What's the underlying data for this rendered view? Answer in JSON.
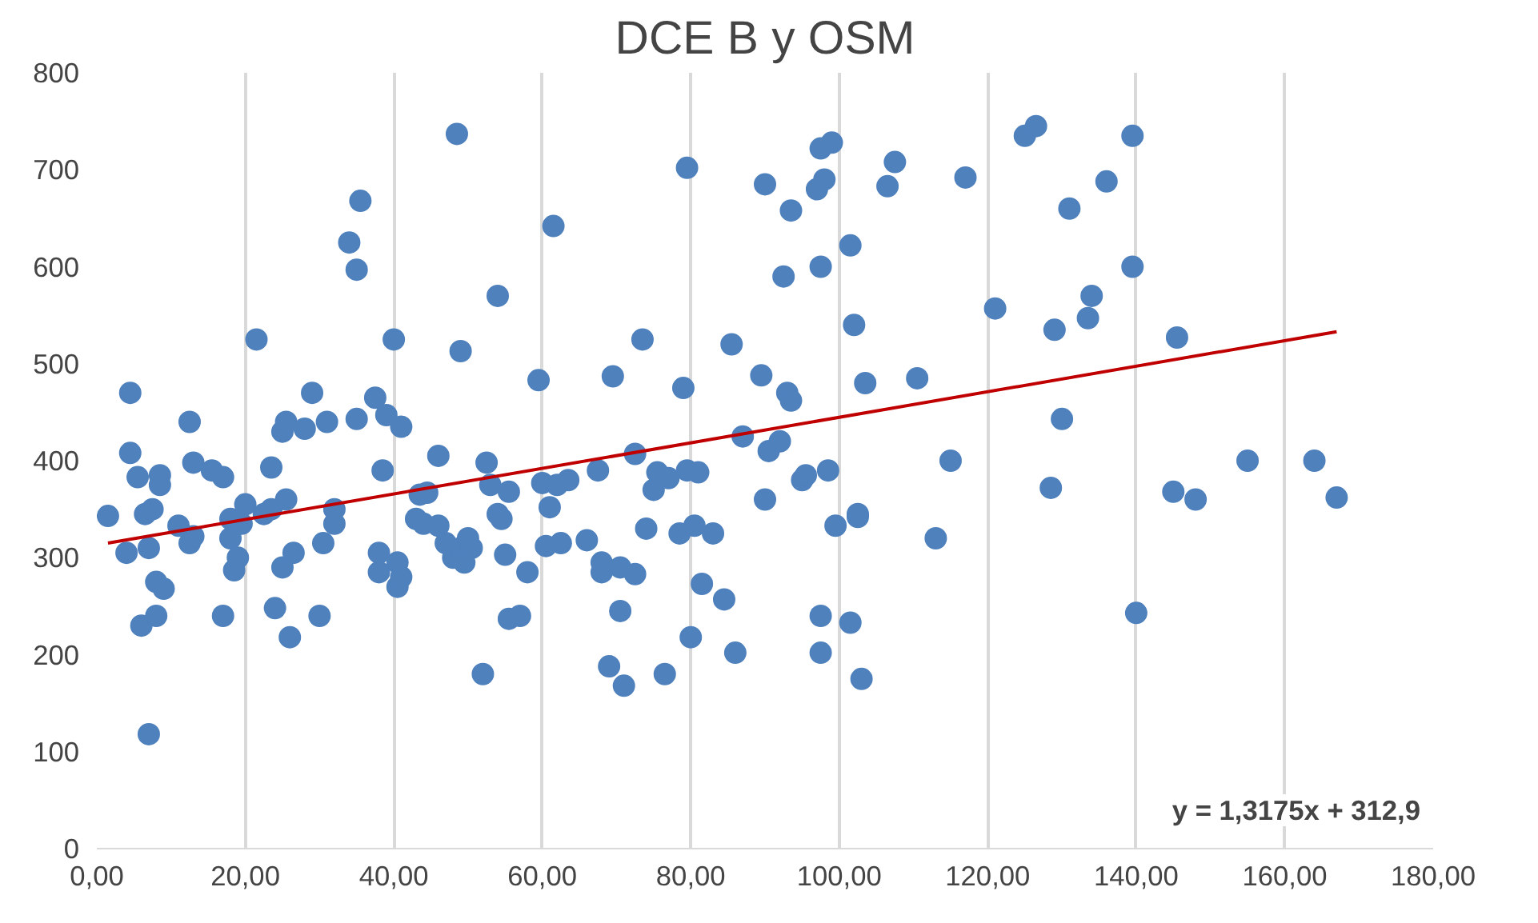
{
  "chart_data": {
    "type": "scatter",
    "title": "DCE B y OSM",
    "grid": "x",
    "xlim": [
      0,
      180
    ],
    "ylim": [
      0,
      800
    ],
    "xticks": [
      {
        "value": 0,
        "label": "0,00"
      },
      {
        "value": 20,
        "label": "20,00"
      },
      {
        "value": 40,
        "label": "40,00"
      },
      {
        "value": 60,
        "label": "60,00"
      },
      {
        "value": 80,
        "label": "80,00"
      },
      {
        "value": 100,
        "label": "100,00"
      },
      {
        "value": 120,
        "label": "120,00"
      },
      {
        "value": 140,
        "label": "140,00"
      },
      {
        "value": 160,
        "label": "160,00"
      },
      {
        "value": 180,
        "label": "180,00"
      }
    ],
    "yticks": [
      0,
      100,
      200,
      300,
      400,
      500,
      600,
      700,
      800
    ],
    "annotations": [
      "y = 1,3175x + 312,9"
    ],
    "series": [
      {
        "color": "#4f81bd",
        "marker": "circle",
        "x": [
          1.5,
          4,
          4.5,
          4.5,
          5.5,
          6,
          6.5,
          7,
          7,
          7.5,
          8,
          8,
          8.5,
          8.5,
          9,
          11,
          12.5,
          12.5,
          13,
          13,
          15.5,
          17,
          17,
          18,
          18,
          18.5,
          19,
          19.5,
          20,
          21.5,
          22.5,
          23.5,
          23.5,
          24,
          25,
          25,
          25.5,
          25.5,
          26,
          26.5,
          28,
          29,
          30,
          30.5,
          31,
          32,
          32,
          34,
          35,
          35.5,
          35,
          37.5,
          38,
          38,
          38.5,
          39,
          40,
          40.5,
          40.5,
          41,
          41,
          43,
          43.5,
          44,
          44.5,
          46,
          46,
          47,
          48,
          48.5,
          49,
          49,
          49.5,
          50,
          50.5,
          52,
          52.5,
          53,
          54,
          54,
          54.5,
          55,
          55.5,
          55.5,
          57,
          58,
          59.5,
          60,
          60.5,
          61,
          61.5,
          62,
          62.5,
          63.5,
          66,
          67.5,
          68,
          68,
          69,
          69.5,
          70.5,
          70.5,
          71,
          72.5,
          72.5,
          73.5,
          74,
          75,
          75.5,
          76.5,
          77,
          78.5,
          79,
          79.5,
          79.5,
          80,
          80.5,
          81,
          81.5,
          83,
          84.5,
          85.5,
          86,
          87,
          89.5,
          90,
          90,
          90.5,
          92,
          92.5,
          93,
          93.5,
          93.5,
          95,
          95.5,
          97,
          97.5,
          97.5,
          97.5,
          97.5,
          98,
          98.5,
          99,
          99.5,
          101.5,
          101.5,
          102,
          102.5,
          102.5,
          103,
          103.5,
          106.5,
          107.5,
          110.5,
          113,
          115,
          117,
          121,
          125,
          126.5,
          128.5,
          129,
          130,
          131,
          133.5,
          134,
          136,
          139.5,
          139.5,
          140,
          145,
          145.5,
          148,
          155,
          164,
          167
        ],
        "values": [
          343,
          305,
          470,
          408,
          383,
          230,
          345,
          118,
          310,
          350,
          240,
          275,
          385,
          375,
          268,
          333,
          440,
          315,
          398,
          322,
          390,
          240,
          383,
          340,
          320,
          287,
          300,
          335,
          355,
          525,
          345,
          350,
          393,
          248,
          430,
          290,
          360,
          440,
          218,
          305,
          433,
          470,
          240,
          315,
          440,
          335,
          350,
          625,
          597,
          668,
          443,
          465,
          305,
          285,
          390,
          447,
          525,
          270,
          295,
          280,
          435,
          340,
          365,
          335,
          367,
          405,
          333,
          315,
          300,
          737,
          513,
          310,
          295,
          320,
          310,
          180,
          398,
          375,
          570,
          345,
          340,
          303,
          368,
          237,
          240,
          285,
          483,
          377,
          312,
          352,
          642,
          375,
          315,
          380,
          318,
          390,
          285,
          295,
          188,
          487,
          290,
          245,
          168,
          407,
          283,
          525,
          330,
          370,
          388,
          180,
          382,
          325,
          475,
          390,
          702,
          218,
          333,
          388,
          273,
          325,
          257,
          520,
          202,
          425,
          488,
          685,
          360,
          410,
          420,
          590,
          470,
          462,
          658,
          380,
          385,
          680,
          722,
          600,
          240,
          202,
          690,
          390,
          728,
          333,
          233,
          622,
          540,
          342,
          345,
          175,
          480,
          683,
          708,
          485,
          320,
          400,
          692,
          557,
          735,
          745,
          372,
          535,
          443,
          660,
          547,
          570,
          688,
          735,
          600,
          243,
          368,
          527,
          360,
          400,
          400,
          362
        ]
      },
      {
        "type": "line",
        "color": "#c00000",
        "x": [
          1.5,
          167
        ],
        "values": [
          315,
          533
        ]
      }
    ]
  }
}
